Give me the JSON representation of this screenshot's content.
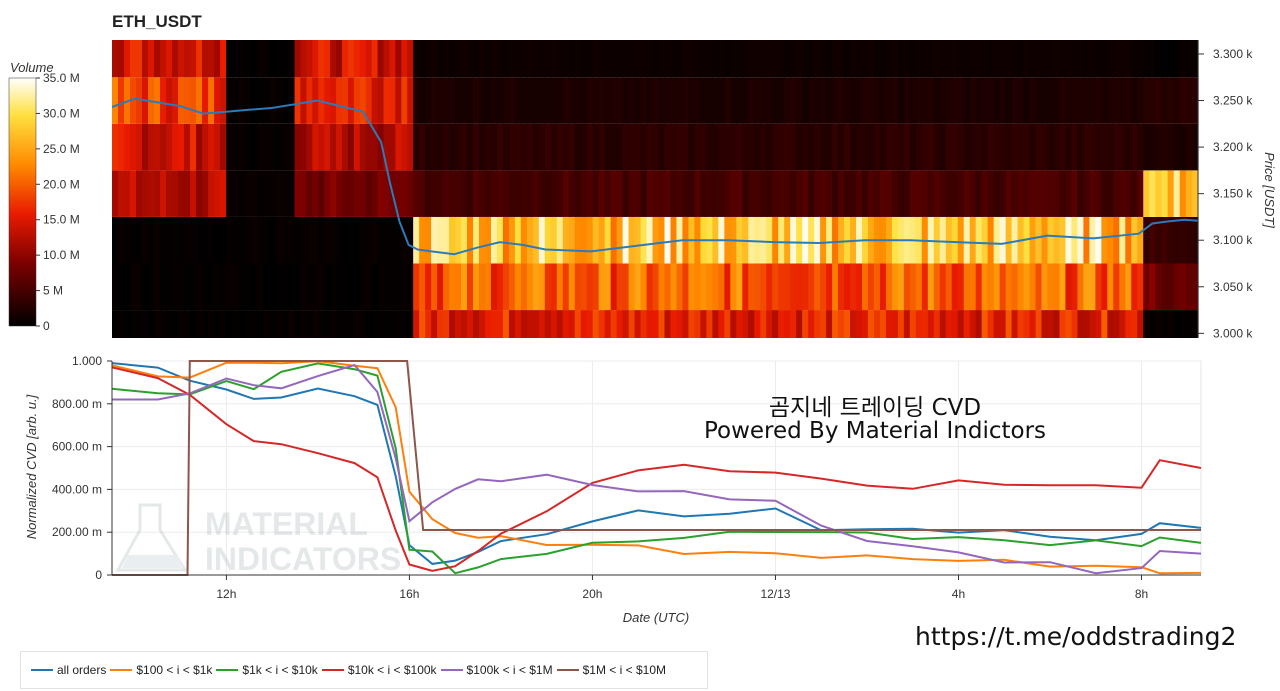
{
  "title": "ETH_USDT",
  "watermark": {
    "line1": "곰지네 트레이딩 CVD",
    "line2": "Powered By Material Indictors",
    "logo_line1": "MATERIAL",
    "logo_line2": "INDICATORS"
  },
  "link": "https://t.me/oddstrading2",
  "colors": {
    "all_orders": "#1f77b4",
    "usd100_1k": "#ff7f0e",
    "usd1k_10k": "#2ca02c",
    "usd10k_100k": "#d62728",
    "usd100k_1m": "#9467bd",
    "usd1m_10m": "#8c564b",
    "price_line": "#2b7bb9"
  },
  "legend": [
    {
      "label": "all orders",
      "color": "#1f77b4"
    },
    {
      "label": "$100 < i < $1k",
      "color": "#ff7f0e"
    },
    {
      "label": "$1k < i < $10k",
      "color": "#2ca02c"
    },
    {
      "label": "$10k < i < $100k",
      "color": "#d62728"
    },
    {
      "label": "$100k < i < $1M",
      "color": "#9467bd"
    },
    {
      "label": "$1M < i < $10M",
      "color": "#8c564b"
    }
  ],
  "chart_data": [
    {
      "type": "heatmap",
      "title": "ETH_USDT",
      "colorbar_label": "Volume",
      "colorbar_ticks": [
        "0",
        "5 M",
        "10.0 M",
        "15.0 M",
        "20.0 M",
        "25.0 M",
        "30.0 M",
        "35.0 M"
      ],
      "colorbar_range": [
        0,
        35
      ],
      "ylabel": "Price [USDT]",
      "y_ticks": [
        "3.000 k",
        "3.050 k",
        "3.100 k",
        "3.150 k",
        "3.200 k",
        "3.250 k",
        "3.300 k"
      ],
      "ylim": [
        2995,
        3315
      ],
      "price_bands": [
        3000,
        3050,
        3100,
        3150,
        3200,
        3250,
        3300
      ],
      "segments": [
        {
          "from_h": 9.5,
          "to_h": 12.0,
          "levels_M": [
            0,
            0,
            0,
            12,
            14,
            18,
            15
          ]
        },
        {
          "from_h": 12.0,
          "to_h": 13.5,
          "levels_M": [
            0,
            0,
            0,
            0,
            0,
            0,
            0
          ]
        },
        {
          "from_h": 13.5,
          "to_h": 16.1,
          "levels_M": [
            0,
            0,
            0,
            8,
            12,
            17,
            14
          ]
        },
        {
          "from_h": 16.1,
          "to_h": 32.1,
          "levels_M": [
            16,
            20,
            28,
            5,
            3,
            2,
            1
          ]
        },
        {
          "from_h": 32.1,
          "to_h": 33.3,
          "levels_M": [
            0,
            8,
            4,
            28,
            2,
            3,
            0
          ]
        }
      ],
      "price_series": {
        "x_hours": [
          9.5,
          10.0,
          10.5,
          11.0,
          11.5,
          12.0,
          12.5,
          13.0,
          13.5,
          14.0,
          14.5,
          15.0,
          15.4,
          15.6,
          15.8,
          16.0,
          16.2,
          16.5,
          17.0,
          17.5,
          18.0,
          18.5,
          19.0,
          20.0,
          21.0,
          22.0,
          23.0,
          24.0,
          25.0,
          26.0,
          27.0,
          28.0,
          29.0,
          30.0,
          31.0,
          32.0,
          32.3,
          32.6,
          33.0,
          33.3
        ],
        "y_price": [
          3243,
          3252,
          3248,
          3244,
          3236,
          3238,
          3240,
          3242,
          3246,
          3250,
          3244,
          3238,
          3205,
          3160,
          3120,
          3095,
          3090,
          3088,
          3085,
          3092,
          3098,
          3095,
          3090,
          3088,
          3094,
          3100,
          3100,
          3098,
          3097,
          3100,
          3100,
          3098,
          3096,
          3105,
          3102,
          3107,
          3118,
          3120,
          3122,
          3121
        ]
      }
    },
    {
      "type": "line",
      "xlabel": "Date (UTC)",
      "ylabel": "Normalized CVD [arb. u.]",
      "x_tick_labels": [
        "12h",
        "16h",
        "20h",
        "12/13",
        "4h",
        "8h"
      ],
      "x_tick_hours": [
        12,
        16,
        20,
        24,
        28,
        32
      ],
      "xlim_hours": [
        9.5,
        33.3
      ],
      "y_tick_labels": [
        "0",
        "200.00 m",
        "400.00 m",
        "600.00 m",
        "800.00 m",
        "1.000"
      ],
      "ylim": [
        0,
        1
      ],
      "grid": true,
      "legend_position": "bottom",
      "x": [
        9.5,
        10.5,
        11.2,
        12.0,
        12.6,
        13.2,
        14.0,
        14.8,
        15.3,
        15.7,
        16.0,
        16.5,
        17.0,
        17.5,
        18.0,
        19.0,
        20.0,
        21.0,
        22.0,
        23.0,
        24.0,
        25.0,
        26.0,
        27.0,
        28.0,
        29.0,
        30.0,
        31.0,
        32.0,
        32.4,
        33.3
      ],
      "series": [
        {
          "name": "all orders",
          "color": "#1f77b4",
          "values": [
            0.99,
            0.96,
            0.92,
            0.86,
            0.82,
            0.84,
            0.86,
            0.84,
            0.8,
            0.45,
            0.15,
            0.05,
            0.06,
            0.12,
            0.15,
            0.19,
            0.26,
            0.29,
            0.28,
            0.29,
            0.3,
            0.22,
            0.21,
            0.21,
            0.21,
            0.2,
            0.18,
            0.17,
            0.18,
            0.25,
            0.22
          ]
        },
        {
          "name": "$100 < i < $1k",
          "color": "#ff7f0e",
          "values": [
            0.98,
            0.93,
            0.93,
            0.98,
            1.0,
            0.99,
            0.99,
            0.99,
            0.96,
            0.78,
            0.4,
            0.25,
            0.2,
            0.18,
            0.17,
            0.15,
            0.14,
            0.13,
            0.11,
            0.1,
            0.1,
            0.09,
            0.08,
            0.08,
            0.07,
            0.06,
            0.05,
            0.04,
            0.03,
            0.02,
            0.01
          ]
        },
        {
          "name": "$1k < i < $10k",
          "color": "#2ca02c",
          "values": [
            0.87,
            0.86,
            0.84,
            0.9,
            0.88,
            0.94,
            0.99,
            0.97,
            0.92,
            0.6,
            0.12,
            0.1,
            0.02,
            0.03,
            0.07,
            0.11,
            0.14,
            0.16,
            0.18,
            0.19,
            0.21,
            0.2,
            0.19,
            0.18,
            0.17,
            0.16,
            0.15,
            0.15,
            0.14,
            0.18,
            0.15
          ]
        },
        {
          "name": "$10k < i < $100k",
          "color": "#d62728",
          "values": [
            0.97,
            0.93,
            0.83,
            0.71,
            0.63,
            0.6,
            0.58,
            0.52,
            0.45,
            0.22,
            0.04,
            0.02,
            0.05,
            0.1,
            0.2,
            0.3,
            0.42,
            0.5,
            0.51,
            0.48,
            0.49,
            0.44,
            0.42,
            0.41,
            0.43,
            0.43,
            0.42,
            0.41,
            0.42,
            0.53,
            0.5
          ]
        },
        {
          "name": "$100k < i < $1M",
          "color": "#9467bd",
          "values": [
            0.82,
            0.82,
            0.84,
            0.93,
            0.88,
            0.87,
            0.94,
            0.97,
            0.86,
            0.55,
            0.24,
            0.35,
            0.4,
            0.44,
            0.45,
            0.46,
            0.42,
            0.4,
            0.38,
            0.36,
            0.35,
            0.22,
            0.17,
            0.13,
            0.1,
            0.07,
            0.05,
            0.01,
            0.04,
            0.1,
            0.1
          ]
        },
        {
          "name": "$1M < i < $10M",
          "color": "#8c564b",
          "values": [
            0.0,
            0.0,
            0.0,
            1.0,
            1.0,
            1.0,
            1.0,
            1.0,
            1.0,
            1.0,
            1.0,
            0.21,
            0.21,
            0.21,
            0.21,
            0.21,
            0.21,
            0.21,
            0.21,
            0.21,
            0.21,
            0.21,
            0.21,
            0.21,
            0.21,
            0.21,
            0.21,
            0.21,
            0.21,
            0.21,
            0.21
          ]
        }
      ]
    }
  ]
}
